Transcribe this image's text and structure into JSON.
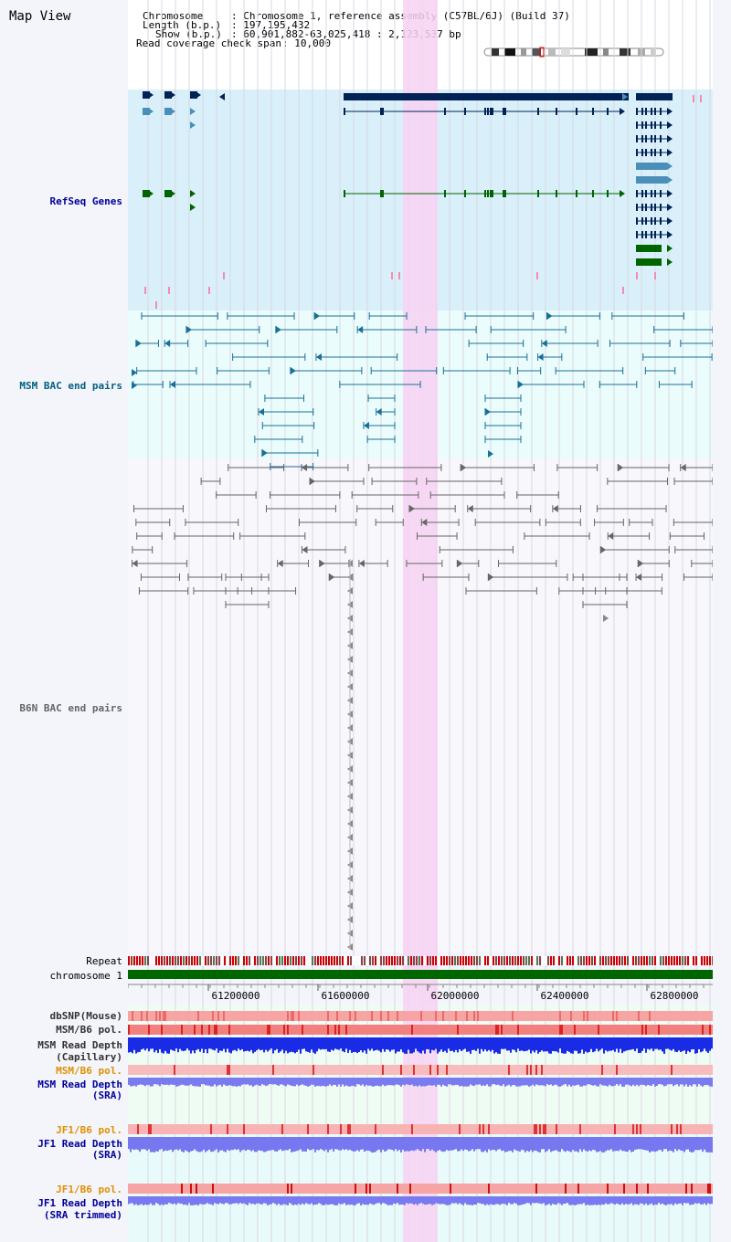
{
  "title": "Map View",
  "header": {
    "chromosome_label": "Chromosome",
    "chromosome_value": ": Chromosome 1, reference assembly (C57BL/6J) (Build 37)",
    "length_label": "Length (b.p.)",
    "length_value": ": 197,195,432",
    "show_label": "Show (b.p.)",
    "show_value": ": 60,901,882-63,025,418 : 2,123,537 bp",
    "coverage_label": "Read coverage check span",
    "coverage_value": ": 10,000"
  },
  "tracks": {
    "refseq": "RefSeq Genes",
    "msm_bac": "MSM BAC end pairs",
    "b6n_bac": "B6N BAC end pairs",
    "repeat": "Repeat",
    "chromosome": "chromosome 1",
    "dbsnp": "dbSNP(Mouse)",
    "msm_b6_pol_1": "MSM/B6 pol.",
    "msm_depth_cap_1": "MSM Read Depth",
    "msm_depth_cap_2": "(Capillary)",
    "msm_b6_pol_2": "MSM/B6 pol.",
    "msm_depth_sra_1": "MSM Read Depth",
    "msm_depth_sra_2": "(SRA)",
    "jf1_b6_pol_1": "JF1/B6 pol.",
    "jf1_depth_sra_1": "JF1 Read Depth",
    "jf1_depth_sra_2": "(SRA)",
    "jf1_b6_pol_2": "JF1/B6 pol.",
    "jf1_depth_trim_1": "JF1 Read Depth",
    "jf1_depth_trim_2": "(SRA trimmed)"
  },
  "ruler": {
    "ticks": [
      "61200000",
      "61600000",
      "62000000",
      "62400000",
      "62800000"
    ]
  },
  "colors": {
    "refseq_bg": "#d9f0fa",
    "msm_bg": "#eafcfc",
    "highlight": "#f7d2f2",
    "gene_dark": "#002255",
    "gene_mid": "#4a8fb8",
    "gene_green": "#006400",
    "label_blue": "#000099",
    "label_msm": "#006080",
    "label_b6n": "#666666",
    "label_orange": "#e09000"
  }
}
